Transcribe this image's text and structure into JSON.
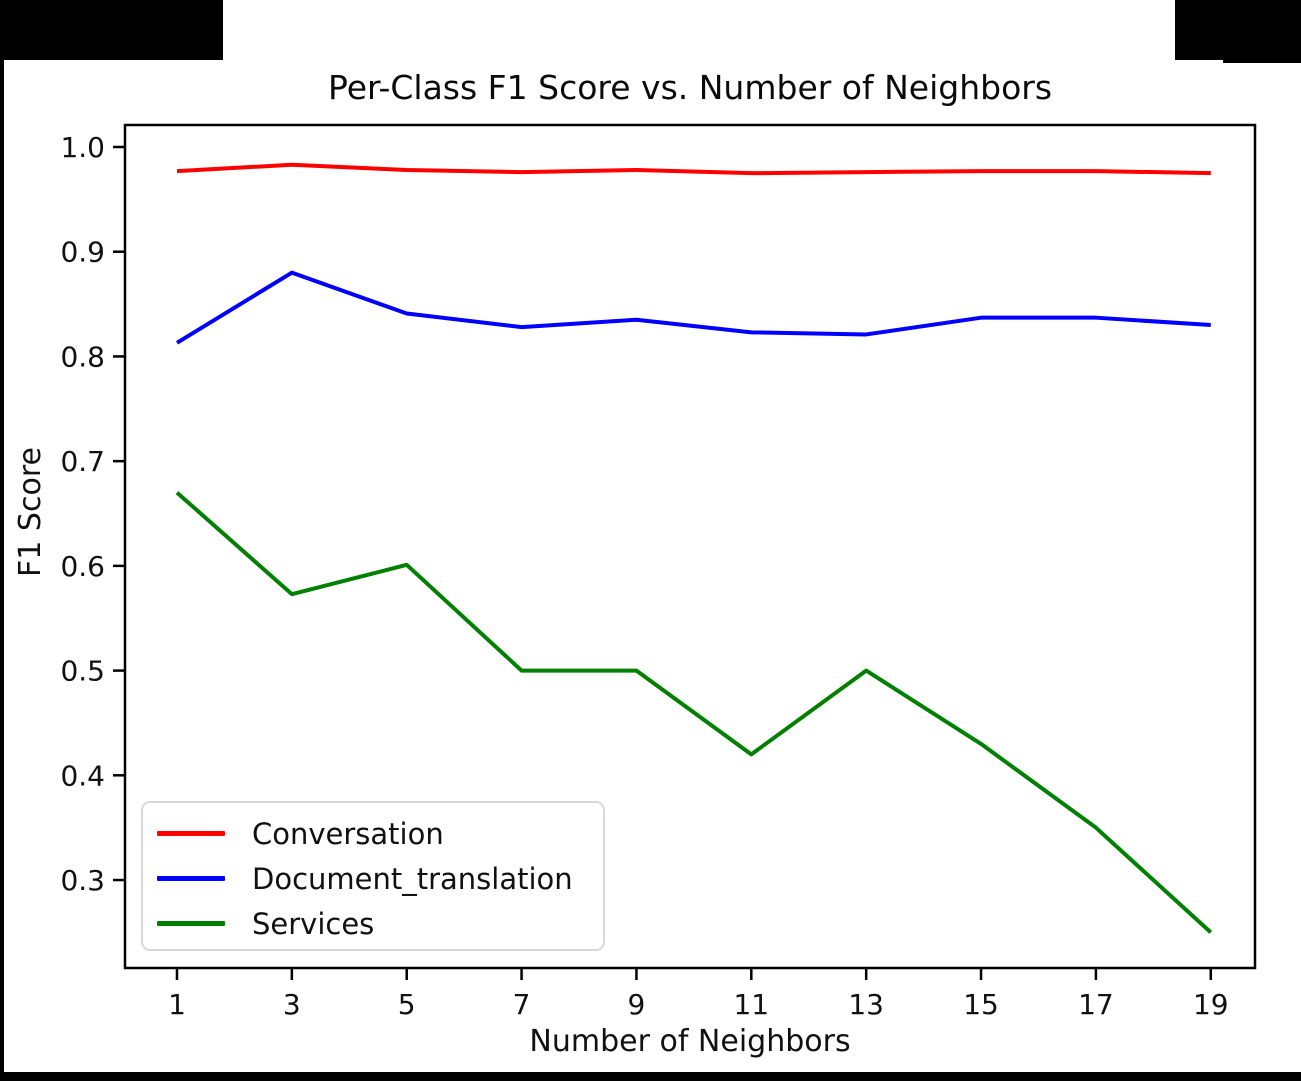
{
  "chart_data": {
    "type": "line",
    "title": "Per-Class F1 Score vs. Number of Neighbors",
    "xlabel": "Number of Neighbors",
    "ylabel": "F1 Score",
    "x": [
      1,
      3,
      5,
      7,
      9,
      11,
      13,
      15,
      17,
      19
    ],
    "series": [
      {
        "name": "Conversation",
        "color": "#ff0000",
        "values": [
          0.977,
          0.983,
          0.978,
          0.976,
          0.978,
          0.975,
          0.976,
          0.977,
          0.977,
          0.975
        ]
      },
      {
        "name": "Document_translation",
        "color": "#0000ff",
        "values": [
          0.813,
          0.88,
          0.841,
          0.828,
          0.835,
          0.823,
          0.821,
          0.837,
          0.837,
          0.83
        ]
      },
      {
        "name": "Services",
        "color": "#008000",
        "values": [
          0.67,
          0.573,
          0.601,
          0.5,
          0.5,
          0.42,
          0.5,
          0.43,
          0.35,
          0.25
        ]
      }
    ],
    "xticks": [
      1,
      3,
      5,
      7,
      9,
      11,
      13,
      15,
      17,
      19
    ],
    "yticks": [
      1.0,
      0.9,
      0.8,
      0.7,
      0.6,
      0.5,
      0.4,
      0.3
    ],
    "xlim": [
      0.095,
      19.77
    ],
    "ylim": [
      0.216,
      1.021
    ],
    "grid": false,
    "legend_position": "lower left"
  }
}
